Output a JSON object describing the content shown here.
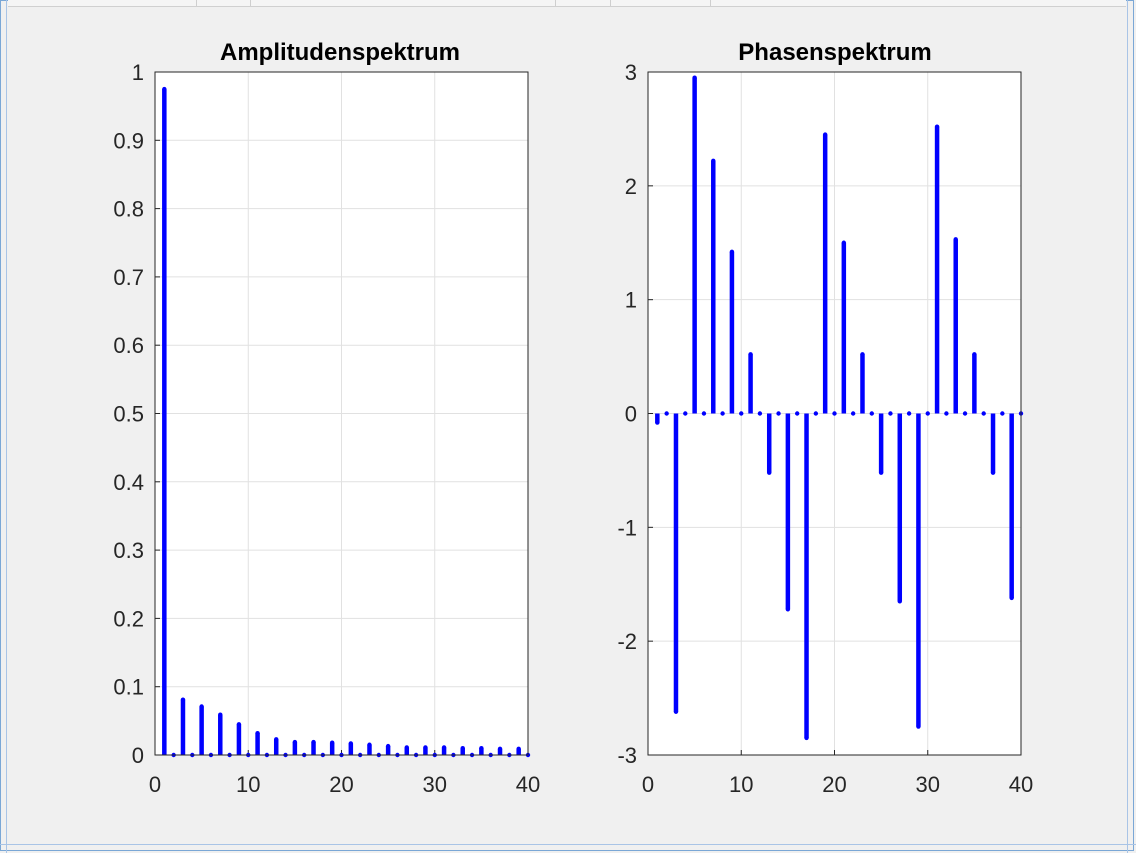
{
  "colors": {
    "stem": "#0000ff",
    "axes": "#262626",
    "grid": "#e1e1e1",
    "plot_bg": "#ffffff",
    "figure_bg": "#f0f0f0"
  },
  "chart_data": [
    {
      "type": "stem",
      "title": "Amplitudenspektrum",
      "xlim": [
        0,
        40
      ],
      "ylim": [
        0,
        1
      ],
      "xticks": [
        "0",
        "10",
        "20",
        "30",
        "40"
      ],
      "yticks": [
        "0",
        "0.1",
        "0.2",
        "0.3",
        "0.4",
        "0.5",
        "0.6",
        "0.7",
        "0.8",
        "0.9",
        "1"
      ],
      "grid": true,
      "x": [
        1,
        2,
        3,
        4,
        5,
        6,
        7,
        8,
        9,
        10,
        11,
        12,
        13,
        14,
        15,
        16,
        17,
        18,
        19,
        20,
        21,
        22,
        23,
        24,
        25,
        26,
        27,
        28,
        29,
        30,
        31,
        32,
        33,
        34,
        35,
        36,
        37,
        38,
        39,
        40
      ],
      "y": [
        0.975,
        0,
        0.081,
        0,
        0.071,
        0,
        0.059,
        0,
        0.045,
        0,
        0.032,
        0,
        0.023,
        0,
        0.019,
        0,
        0.019,
        0,
        0.018,
        0,
        0.017,
        0,
        0.015,
        0,
        0.013,
        0,
        0.011,
        0,
        0.011,
        0,
        0.011,
        0,
        0.01,
        0,
        0.01,
        0,
        0.009,
        0,
        0.009,
        0
      ]
    },
    {
      "type": "stem",
      "title": "Phasenspektrum",
      "xlim": [
        0,
        40
      ],
      "ylim": [
        -3,
        3
      ],
      "xticks": [
        "0",
        "10",
        "20",
        "30",
        "40"
      ],
      "yticks": [
        "-3",
        "-2",
        "-1",
        "0",
        "1",
        "2",
        "3"
      ],
      "grid": true,
      "x": [
        1,
        2,
        3,
        4,
        5,
        6,
        7,
        8,
        9,
        10,
        11,
        12,
        13,
        14,
        15,
        16,
        17,
        18,
        19,
        20,
        21,
        22,
        23,
        24,
        25,
        26,
        27,
        28,
        29,
        30,
        31,
        32,
        33,
        34,
        35,
        36,
        37,
        38,
        39,
        40
      ],
      "y": [
        -0.08,
        0,
        -2.62,
        0,
        2.95,
        0,
        2.22,
        0,
        1.42,
        0,
        0.52,
        0,
        -0.52,
        0,
        -1.72,
        0,
        -2.85,
        0,
        2.45,
        0,
        1.5,
        0,
        0.52,
        0,
        -0.52,
        0,
        -1.65,
        0,
        -2.75,
        0,
        2.52,
        0,
        1.53,
        0,
        0.52,
        0,
        -0.52,
        0,
        -1.62,
        0
      ]
    }
  ]
}
